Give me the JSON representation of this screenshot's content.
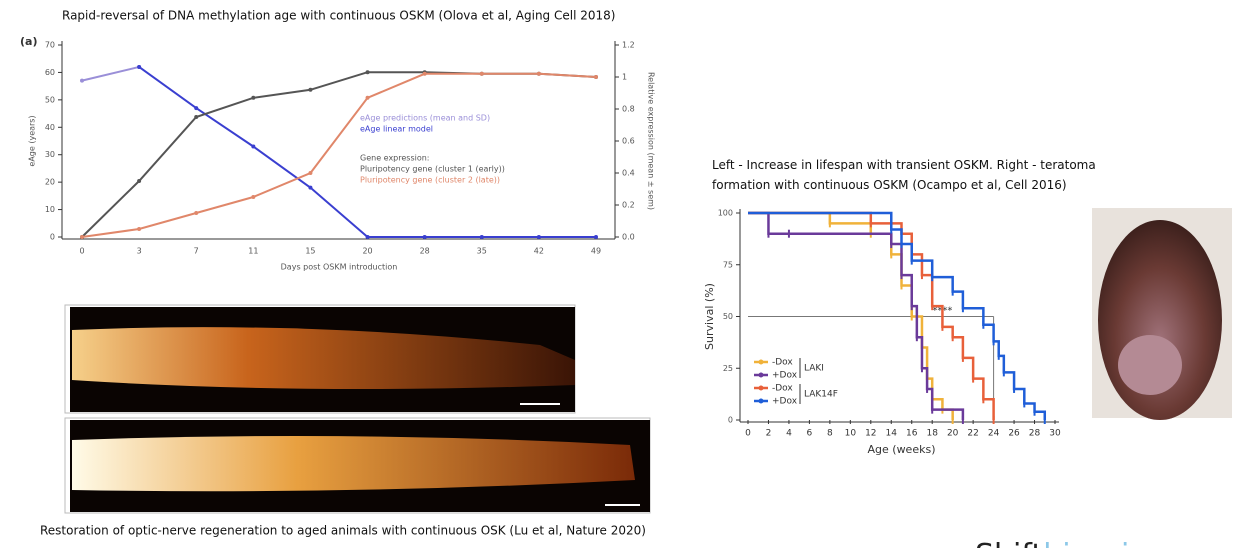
{
  "captions": {
    "top": "Rapid-reversal of DNA methylation age with continuous OSKM (Olova et al, Aging Cell 2018)",
    "panel": "(a)",
    "right": "Left - Increase in lifespan with transient OSKM. Right - teratoma formation with continuous OSKM (Ocampo et al, Cell 2016)",
    "bottom": "Restoration of optic-nerve regeneration to aged animals with continuous OSK (Lu et al, Nature 2020)",
    "logo": "Shift",
    "logo_accent": "bioscience"
  },
  "chart_data": [
    {
      "type": "line",
      "x_label": "Days post OSKM introduction",
      "y_label": "eAge (years)",
      "y2_label": "Relative expression (mean ± sem)",
      "categories": [
        "0",
        "3",
        "7",
        "11",
        "15",
        "20",
        "28",
        "35",
        "42",
        "49"
      ],
      "ylim": [
        0,
        70
      ],
      "yticks": [
        0,
        10,
        20,
        30,
        40,
        50,
        60,
        70
      ],
      "y2lim": [
        0,
        1.2
      ],
      "y2ticks": [
        {
          "value": 0,
          "label": "0.0"
        },
        0.2,
        0.4,
        0.6,
        0.8,
        1,
        1.2
      ],
      "legend_title": "Gene expression:",
      "series": [
        {
          "name": "eAge predictions (mean and SD)",
          "color": "#9a8fd8",
          "values": [
            57,
            62,
            null,
            null,
            null,
            null,
            null,
            null,
            null,
            null
          ]
        },
        {
          "name": "eAge linear model",
          "color": "#3a3fd0",
          "values": [
            null,
            62,
            47,
            33,
            18,
            0,
            0,
            0,
            0,
            0
          ]
        },
        {
          "name": "Pluripotency gene (cluster 1 (early))",
          "color": "#555555",
          "axis": "y2",
          "values": [
            0,
            0.35,
            0.75,
            0.87,
            0.92,
            1.03,
            1.03,
            1.02,
            1.02,
            1
          ]
        },
        {
          "name": "Pluripotency gene (cluster 2 (late))",
          "color": "#e0876a",
          "axis": "y2",
          "values": [
            0,
            0.05,
            0.15,
            0.25,
            0.4,
            0.87,
            1.02,
            1.02,
            1.02,
            1
          ]
        }
      ]
    },
    {
      "type": "line",
      "step": true,
      "x_label": "Age (weeks)",
      "y_label": "Survival (%)",
      "xlim": [
        0,
        30
      ],
      "xticks": [
        0,
        2,
        4,
        6,
        8,
        10,
        12,
        14,
        16,
        18,
        20,
        22,
        24,
        26,
        28,
        30
      ],
      "ylim": [
        0,
        100
      ],
      "yticks": [
        0,
        25,
        50,
        75,
        100
      ],
      "annotation": "****",
      "groups": [
        "LAKI",
        "LAK14F"
      ],
      "series": [
        {
          "name": "-Dox",
          "color": "#f0b23a",
          "x": [
            0,
            8,
            12,
            14,
            15,
            16,
            17,
            17.5,
            18,
            19,
            20
          ],
          "values": [
            100,
            95,
            90,
            80,
            65,
            50,
            35,
            20,
            10,
            5,
            0
          ]
        },
        {
          "name": "+Dox",
          "color": "#6a3a9a",
          "x": [
            0,
            2,
            4,
            14,
            15,
            16,
            16.5,
            17,
            17.5,
            18,
            21
          ],
          "values": [
            100,
            90,
            90,
            85,
            70,
            55,
            40,
            25,
            15,
            5,
            0
          ]
        },
        {
          "name": "-Dox",
          "color": "#e8603a",
          "x": [
            0,
            12,
            15,
            16,
            17,
            18,
            19,
            20,
            21,
            22,
            23,
            24
          ],
          "values": [
            100,
            95,
            90,
            80,
            70,
            55,
            45,
            40,
            30,
            20,
            10,
            0
          ]
        },
        {
          "name": "+Dox",
          "color": "#1f5ed8",
          "x": [
            0,
            14,
            15,
            16,
            18,
            20,
            21,
            23,
            24,
            24.5,
            25,
            26,
            27,
            28,
            29
          ],
          "values": [
            100,
            92,
            85,
            77,
            69,
            62,
            54,
            46,
            38,
            31,
            23,
            15,
            8,
            4,
            0
          ]
        }
      ]
    }
  ]
}
